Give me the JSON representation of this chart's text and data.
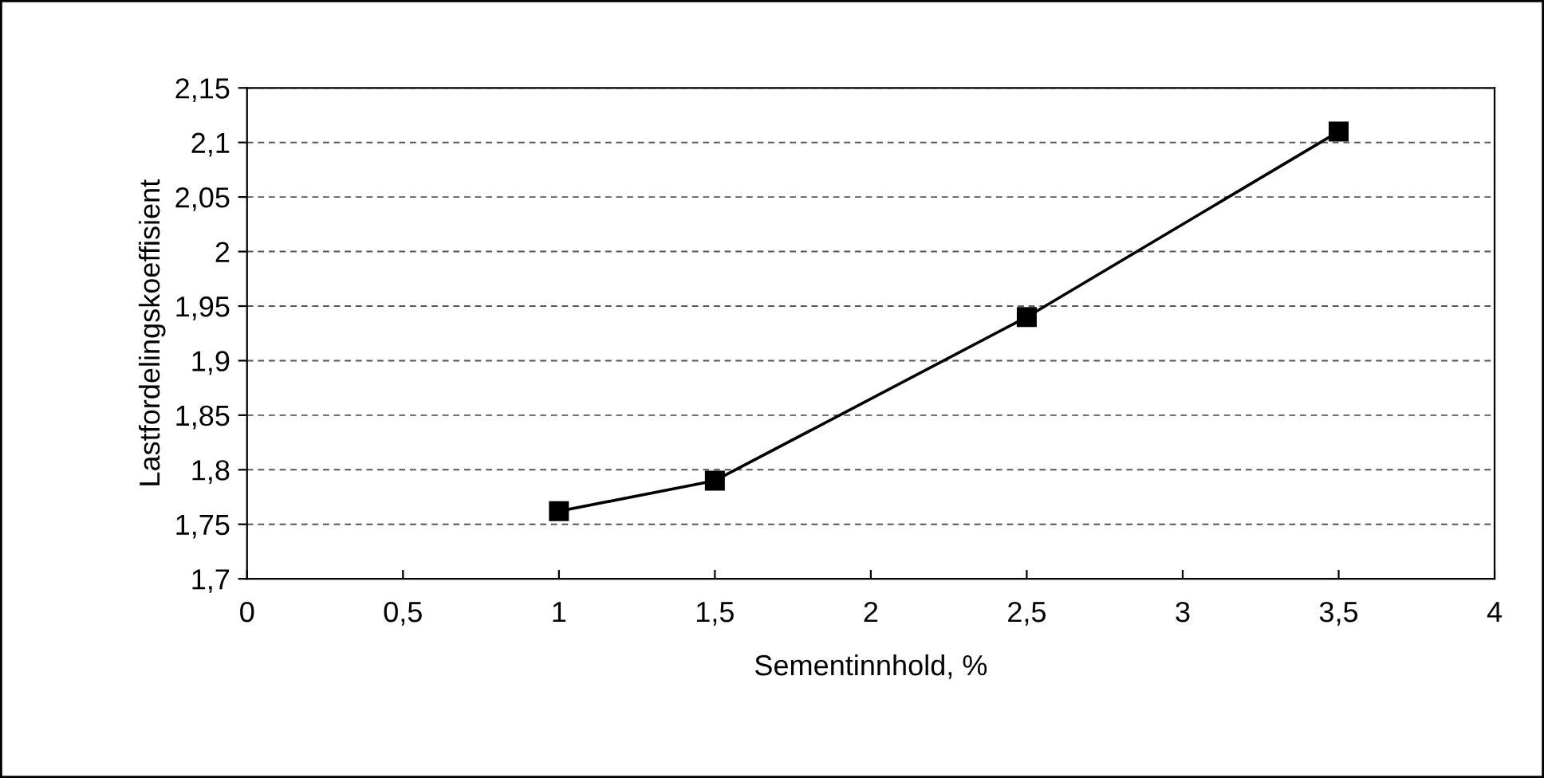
{
  "chart_data": {
    "type": "line",
    "xlabel": "Sementinnhold, %",
    "ylabel": "Lastfordelingskoeffisient",
    "x": [
      1,
      1.5,
      2.5,
      3.5
    ],
    "series": [
      {
        "color": "#000000",
        "values": [
          1.762,
          1.79,
          1.94,
          2.11
        ]
      }
    ],
    "xlim": [
      0,
      4
    ],
    "ylim": [
      1.7,
      2.15
    ],
    "xticks": [
      0,
      {
        "value": 0.5,
        "label": "0,5"
      },
      1,
      {
        "value": 1.5,
        "label": "1,5"
      },
      2,
      {
        "value": 2.5,
        "label": "2,5"
      },
      3,
      {
        "value": 3.5,
        "label": "3,5"
      },
      4
    ],
    "yticks": [
      {
        "value": 1.7,
        "label": "1,7"
      },
      {
        "value": 1.75,
        "label": "1,75"
      },
      {
        "value": 1.8,
        "label": "1,8"
      },
      {
        "value": 1.85,
        "label": "1,85"
      },
      {
        "value": 1.9,
        "label": "1,9"
      },
      {
        "value": 1.95,
        "label": "1,95"
      },
      2,
      {
        "value": 2.05,
        "label": "2,05"
      },
      {
        "value": 2.1,
        "label": "2,1"
      },
      {
        "value": 2.15,
        "label": "2,15"
      }
    ],
    "grid": "y",
    "marker": "square",
    "line_style": "solid",
    "legend": false
  }
}
